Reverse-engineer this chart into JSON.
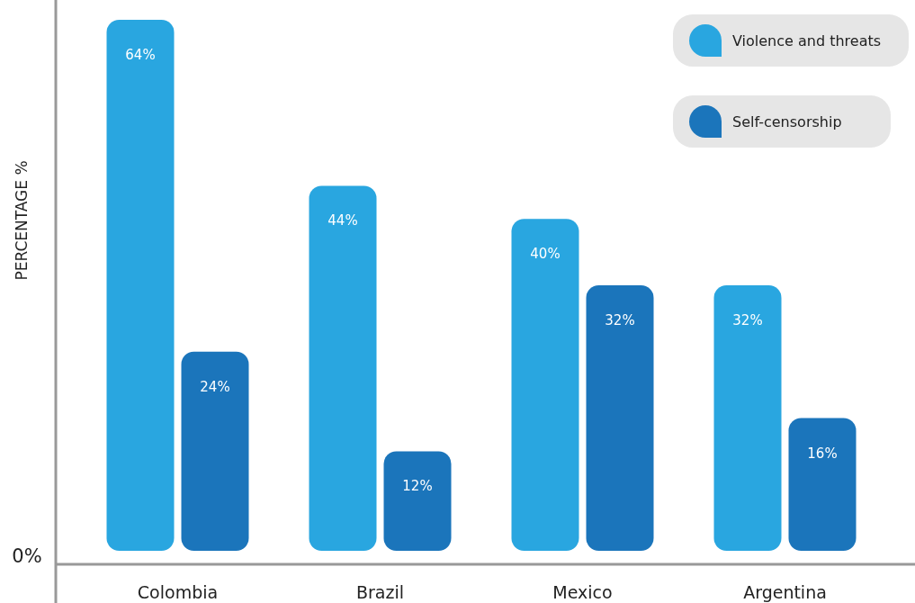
{
  "chart_data": {
    "type": "bar",
    "ylabel": "PERCENTAGE  %",
    "categories": [
      "Colombia",
      "Brazil",
      "Mexico",
      "Argentina"
    ],
    "series": [
      {
        "name": "Violence and threats",
        "color": "#29a6e0",
        "values": [
          64,
          44,
          40,
          32
        ],
        "value_labels": [
          "64%",
          "44%",
          "40%",
          "32%"
        ]
      },
      {
        "name": "Self-censorship",
        "color": "#1b75bb",
        "values": [
          24,
          12,
          32,
          16
        ],
        "value_labels": [
          "24%",
          "12%",
          "32%",
          "16%"
        ]
      }
    ],
    "annotations": [
      "0%"
    ],
    "legend": "top right"
  }
}
